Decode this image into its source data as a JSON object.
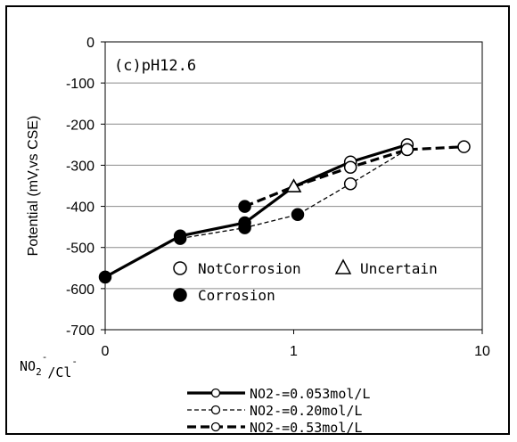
{
  "chart_data": {
    "type": "line",
    "annotation": "(c)pH12.6",
    "ylabel": "Potential (mV,vs CSE)",
    "xlabel": "NO₂⁻/Cl⁻",
    "xscale": "log",
    "xlim": [
      0.1,
      10
    ],
    "ylim": [
      -700,
      0
    ],
    "xticks": [
      0.1,
      1,
      10
    ],
    "xtick_labels": [
      "0",
      "1",
      "10"
    ],
    "yticks": [
      0,
      -100,
      -200,
      -300,
      -400,
      -500,
      -600,
      -700
    ],
    "ytick_labels": [
      "0",
      "-100",
      "-200",
      "-300",
      "-400",
      "-500",
      "-600",
      "-700"
    ],
    "grid": "horizontal",
    "series": [
      {
        "name": "NO2-=0.053mol/L",
        "style": "solid-thick",
        "points": [
          {
            "x": 0.1,
            "y": -572,
            "m": "filled"
          },
          {
            "x": 0.25,
            "y": -472,
            "m": "filled"
          },
          {
            "x": 0.55,
            "y": -440,
            "m": "filled"
          },
          {
            "x": 1.0,
            "y": -352,
            "m": "triangle"
          },
          {
            "x": 2.0,
            "y": -292,
            "m": "open"
          },
          {
            "x": 4.0,
            "y": -250,
            "m": "open"
          }
        ]
      },
      {
        "name": "NO2-=0.20mol/L",
        "style": "dashed-thin",
        "points": [
          {
            "x": 0.25,
            "y": -478,
            "m": "filled"
          },
          {
            "x": 0.55,
            "y": -452,
            "m": "filled"
          },
          {
            "x": 1.05,
            "y": -420,
            "m": "filled"
          },
          {
            "x": 2.0,
            "y": -345,
            "m": "open"
          },
          {
            "x": 4.0,
            "y": -262,
            "m": "open"
          }
        ]
      },
      {
        "name": "NO2-=0.53mol/L",
        "style": "dashed-thick",
        "points": [
          {
            "x": 0.55,
            "y": -400,
            "m": "filled"
          },
          {
            "x": 1.0,
            "y": -352,
            "m": "triangle"
          },
          {
            "x": 2.0,
            "y": -305,
            "m": "open"
          },
          {
            "x": 4.0,
            "y": -262,
            "m": "open"
          },
          {
            "x": 8.0,
            "y": -255,
            "m": "open"
          }
        ]
      }
    ],
    "marker_legend": {
      "notcorrosion": "NotCorrosion",
      "uncertain": "Uncertain",
      "corrosion": "Corrosion"
    }
  }
}
